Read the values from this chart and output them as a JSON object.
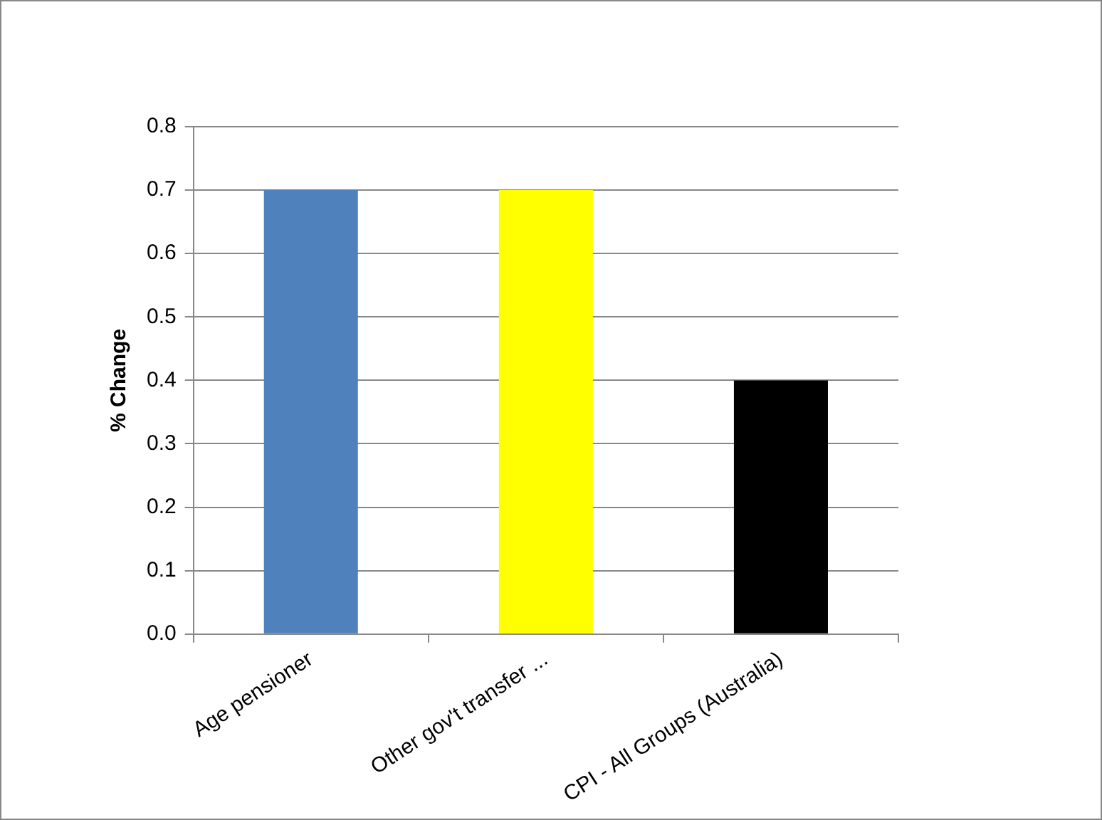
{
  "chart_data": {
    "type": "bar",
    "categories": [
      "Age pensioner",
      "Other gov't transfer ...",
      "CPI - All Groups (Australia)"
    ],
    "colors": [
      "#4f81bd",
      "#ffff00",
      "#000000"
    ],
    "values": [
      0.7,
      0.7,
      0.4
    ],
    "ylabel": "% Change",
    "ylim": [
      0,
      0.8
    ],
    "yticks": [
      {
        "value": 0,
        "label": "0.0"
      },
      0.1,
      0.2,
      0.3,
      0.4,
      0.5,
      0.6,
      0.7,
      0.8
    ],
    "grid": "y",
    "legend": false
  }
}
